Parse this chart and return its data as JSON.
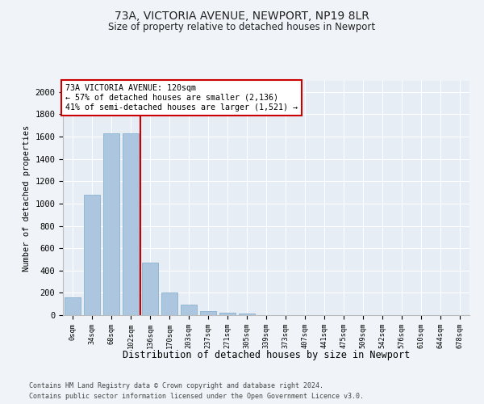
{
  "title1": "73A, VICTORIA AVENUE, NEWPORT, NP19 8LR",
  "title2": "Size of property relative to detached houses in Newport",
  "xlabel": "Distribution of detached houses by size in Newport",
  "ylabel": "Number of detached properties",
  "categories": [
    "0sqm",
    "34sqm",
    "68sqm",
    "102sqm",
    "136sqm",
    "170sqm",
    "203sqm",
    "237sqm",
    "271sqm",
    "305sqm",
    "339sqm",
    "373sqm",
    "407sqm",
    "441sqm",
    "475sqm",
    "509sqm",
    "542sqm",
    "576sqm",
    "610sqm",
    "644sqm",
    "678sqm"
  ],
  "values": [
    160,
    1080,
    1630,
    1630,
    470,
    200,
    95,
    35,
    25,
    15,
    0,
    0,
    0,
    0,
    0,
    0,
    0,
    0,
    0,
    0,
    0
  ],
  "bar_color": "#adc6e0",
  "bar_edge_color": "#7aaaca",
  "vline_x": 3.5,
  "vline_color": "#cc0000",
  "annotation_text": "73A VICTORIA AVENUE: 120sqm\n← 57% of detached houses are smaller (2,136)\n41% of semi-detached houses are larger (1,521) →",
  "annotation_box_color": "#ffffff",
  "annotation_box_edge": "#cc0000",
  "ylim": [
    0,
    2100
  ],
  "yticks": [
    0,
    200,
    400,
    600,
    800,
    1000,
    1200,
    1400,
    1600,
    1800,
    2000
  ],
  "footer1": "Contains HM Land Registry data © Crown copyright and database right 2024.",
  "footer2": "Contains public sector information licensed under the Open Government Licence v3.0.",
  "bg_color": "#f0f4f8",
  "plot_bg_color": "#e6edf5"
}
